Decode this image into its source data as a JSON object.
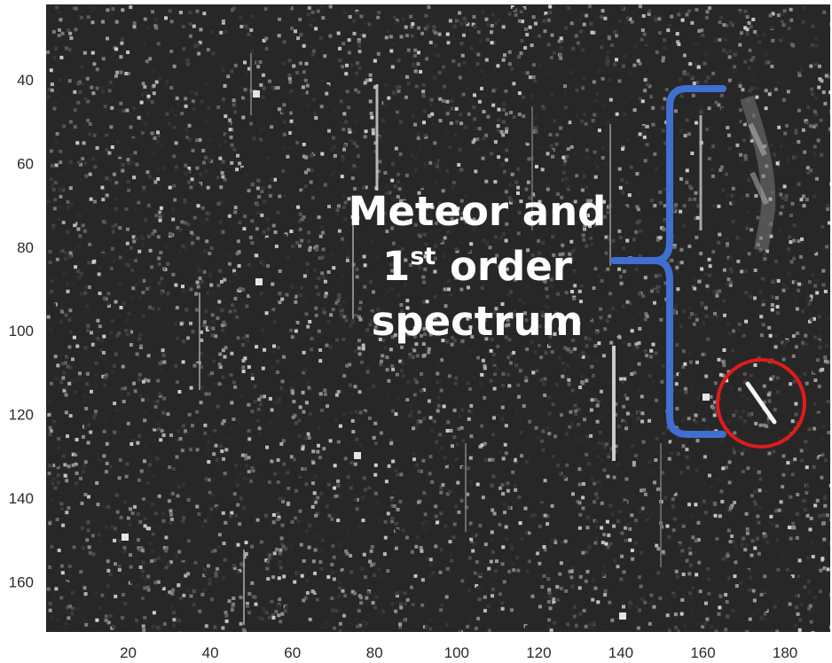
{
  "figure": {
    "x_ticks": [
      "20",
      "40",
      "60",
      "80",
      "100",
      "120",
      "140",
      "160",
      "180"
    ],
    "y_ticks": [
      "40",
      "60",
      "80",
      "100",
      "120",
      "140",
      "160"
    ],
    "x_tick_values": [
      20,
      40,
      60,
      80,
      100,
      120,
      140,
      160,
      180
    ],
    "y_tick_values": [
      40,
      60,
      80,
      100,
      120,
      140,
      160
    ],
    "x_range": [
      0,
      191
    ],
    "y_range": [
      22,
      172
    ],
    "annotation": {
      "line1": "Meteor and",
      "line2_main": "1",
      "line2_sup": "st",
      "line2_rest": " order",
      "line3": "spectrum"
    },
    "bracket_color": "#3f6fd0",
    "circle_color": "#e01b1b",
    "image_colormap": "grayscale"
  }
}
